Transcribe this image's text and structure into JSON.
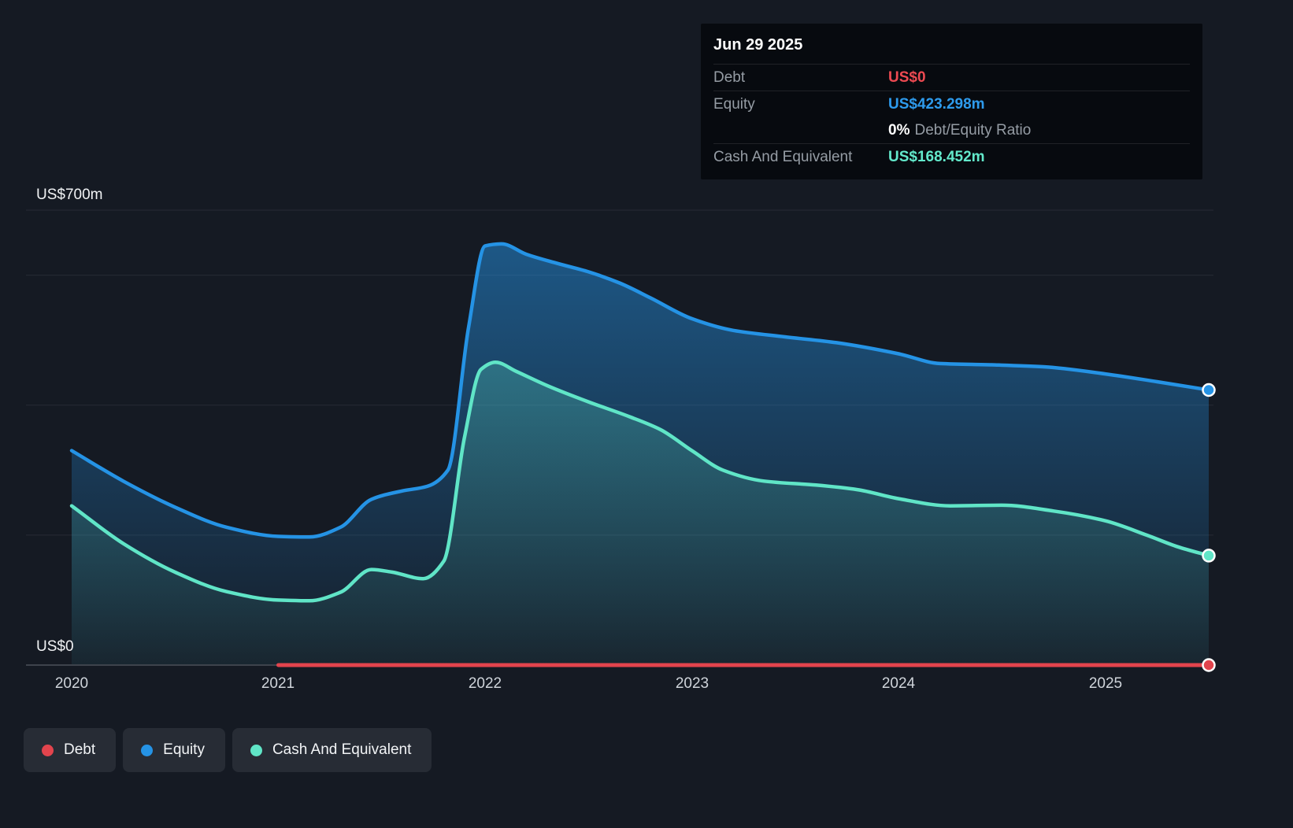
{
  "tooltip": {
    "date": "Jun 29 2025",
    "debt": {
      "label": "Debt",
      "value": "US$0",
      "color": "#ed4a52"
    },
    "equity": {
      "label": "Equity",
      "value": "US$423.298m",
      "color": "#2e9bed"
    },
    "ratio": {
      "value": "0%",
      "label": "Debt/Equity Ratio",
      "color": "#ffffff"
    },
    "cash": {
      "label": "Cash And Equivalent",
      "value": "US$168.452m",
      "color": "#63e9cb"
    }
  },
  "axis": {
    "y_top_label": "US$700m",
    "y_bottom_label": "US$0",
    "years": [
      "2020",
      "2021",
      "2022",
      "2023",
      "2024",
      "2025"
    ]
  },
  "legend": {
    "items": [
      {
        "label": "Debt",
        "color": "#e2444d"
      },
      {
        "label": "Equity",
        "color": "#2593e5"
      },
      {
        "label": "Cash And Equivalent",
        "color": "#60e5c7"
      }
    ]
  },
  "chart_data": {
    "type": "area",
    "title": "Debt, Equity and Cash And Equivalent over time",
    "ylabel": "US$m",
    "ylim": [
      0,
      700
    ],
    "xlim": [
      2020,
      2025.5
    ],
    "x_ticks": [
      2020,
      2021,
      2022,
      2023,
      2024,
      2025
    ],
    "grid_values": [
      700,
      600,
      400,
      200
    ],
    "grid_on": true,
    "legend_position": "bottom-left",
    "series": [
      {
        "name": "Equity",
        "color": "#2593e5",
        "fill": true,
        "fill_alpha": [
          0.55,
          0.03
        ],
        "marker_end": true,
        "end_value_label": "US$423.298m",
        "x": [
          2020,
          2020.25,
          2020.5,
          2020.75,
          2021,
          2021.15,
          2021.3,
          2021.45,
          2021.6,
          2021.72,
          2021.82,
          2021.92,
          2022,
          2022.08,
          2022.2,
          2022.35,
          2022.5,
          2022.65,
          2022.8,
          2023,
          2023.2,
          2023.45,
          2023.7,
          2024,
          2024.2,
          2024.45,
          2024.7,
          2025,
          2025.25,
          2025.5
        ],
        "values": [
          330,
          283,
          243,
          212,
          198,
          197,
          212,
          255,
          268,
          275,
          300,
          520,
          645,
          648,
          632,
          618,
          605,
          588,
          565,
          533,
          515,
          505,
          496,
          479,
          464,
          462,
          459,
          448,
          436,
          423.298
        ]
      },
      {
        "name": "Cash And Equivalent",
        "color": "#60e5c7",
        "fill": true,
        "fill_alpha": [
          0.38,
          0.04
        ],
        "marker_end": true,
        "end_value_label": "US$168.452m",
        "x": [
          2020,
          2020.25,
          2020.5,
          2020.75,
          2021,
          2021.15,
          2021.3,
          2021.45,
          2021.55,
          2021.7,
          2021.8,
          2021.9,
          2021.98,
          2022.05,
          2022.15,
          2022.3,
          2022.5,
          2022.7,
          2022.85,
          2023,
          2023.15,
          2023.35,
          2023.6,
          2023.8,
          2024,
          2024.25,
          2024.5,
          2024.75,
          2025,
          2025.2,
          2025.35,
          2025.5
        ],
        "values": [
          245,
          187,
          143,
          113,
          100,
          99,
          112,
          147,
          143,
          133,
          160,
          350,
          455,
          466,
          452,
          430,
          405,
          382,
          362,
          330,
          300,
          283,
          277,
          270,
          256,
          245,
          246,
          237,
          222,
          200,
          182,
          168.452
        ]
      },
      {
        "name": "Debt",
        "color": "#e2444d",
        "fill": false,
        "marker_end": true,
        "end_value_label": "US$0",
        "x": [
          2021,
          2025.5
        ],
        "values": [
          0,
          0
        ]
      }
    ]
  }
}
